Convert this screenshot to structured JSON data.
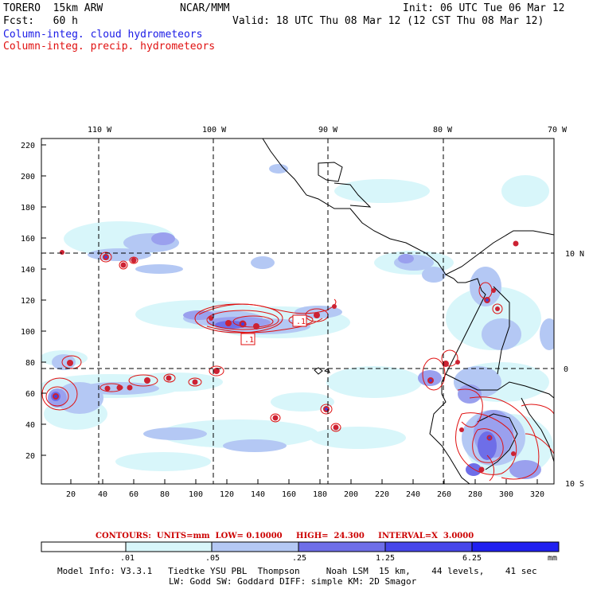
{
  "header": {
    "model": "TORERO  15km ARW",
    "org": "NCAR/MMM",
    "init": "Init: 06 UTC Tue 06 Mar 12",
    "fcst": "Fcst:   60 h",
    "valid": "Valid: 18 UTC Thu 08 Mar 12 (12 CST Thu 08 Mar 12)",
    "field1": "Column-integ. cloud hydrometeors",
    "field2": "Column-integ. precip. hydrometeors"
  },
  "axes": {
    "top_lon": [
      "110 W",
      "100 W",
      "90 W",
      "80 W",
      "70 W"
    ],
    "right_lat": [
      "10 N",
      "0",
      "10 S"
    ],
    "left_y": [
      "220",
      "200",
      "180",
      "160",
      "140",
      "120",
      "100",
      "80",
      "60",
      "40",
      "20"
    ],
    "bottom_x": [
      "20",
      "40",
      "60",
      "80",
      "100",
      "120",
      "140",
      "160",
      "180",
      "200",
      "220",
      "240",
      "260",
      "280",
      "300",
      "320"
    ]
  },
  "contour_labels": [
    ".1",
    ".1"
  ],
  "contours_info": "CONTOURS:  UNITS=mm  LOW= 0.10000     HIGH=  24.300     INTERVAL=X  3.0000",
  "colorbar": {
    "labels": [
      ".01",
      ".05",
      ".25",
      "1.25",
      "6.25"
    ],
    "unit": "mm",
    "colors": [
      "#ffffff",
      "#d8f6fa",
      "#b4c8f4",
      "#9aa0ee",
      "#6e6ee8",
      "#4646ea",
      "#2020f0"
    ]
  },
  "footer": {
    "line1": "Model Info: V3.3.1   Tiedtke YSU PBL  Thompson     Noah LSM  15 km,    44 levels,    41 sec",
    "line2": "LW: Godd SW: Goddard DIFF: simple KM: 2D Smagor"
  }
}
